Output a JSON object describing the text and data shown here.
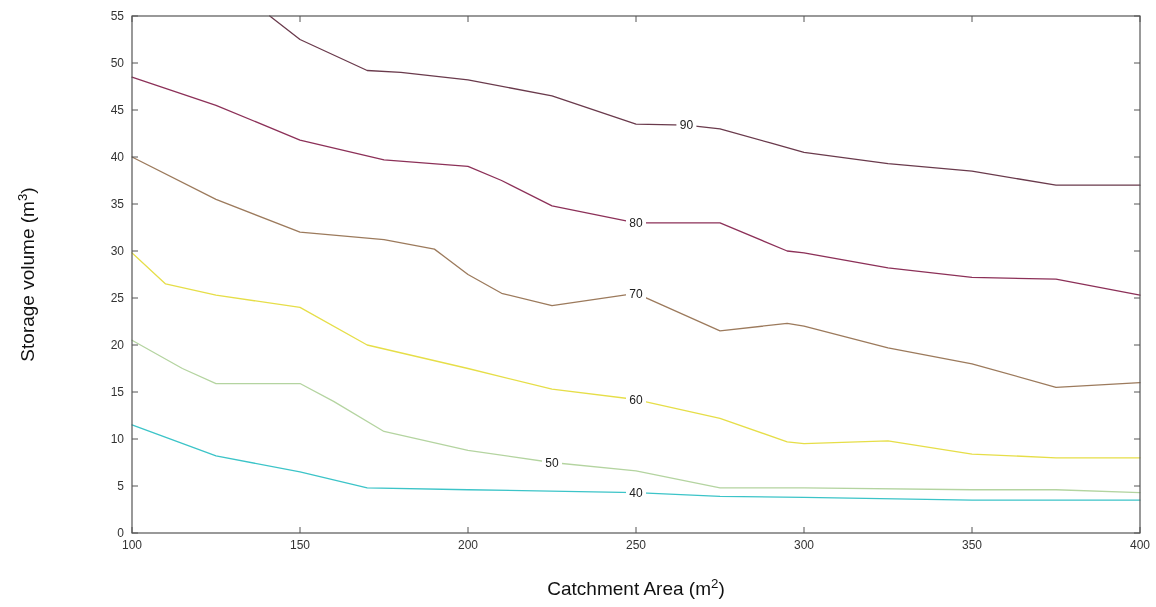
{
  "chart_data": {
    "type": "line",
    "xlabel": "Catchment Area (m$^{2}$)",
    "ylabel": "Storage volume (m$^{3}$)",
    "xlim": [
      100,
      400
    ],
    "ylim": [
      0,
      55
    ],
    "xticks": [
      100,
      150,
      200,
      250,
      300,
      350,
      400
    ],
    "yticks": [
      0,
      5,
      10,
      15,
      20,
      25,
      30,
      35,
      40,
      45,
      50,
      55
    ],
    "grid": false,
    "marker": "none",
    "line_style": "solid",
    "series": [
      {
        "name": "40",
        "color": "#3cc4c8",
        "x": [
          100,
          125,
          150,
          170,
          200,
          250,
          275,
          300,
          350,
          400
        ],
        "values": [
          11.5,
          8.2,
          6.5,
          4.8,
          4.6,
          4.3,
          3.9,
          3.8,
          3.5,
          3.5
        ]
      },
      {
        "name": "50",
        "color": "#b4d4a0",
        "x": [
          100,
          115,
          125,
          150,
          160,
          175,
          200,
          225,
          250,
          275,
          300,
          350,
          375,
          400
        ],
        "values": [
          20.5,
          17.5,
          15.9,
          15.9,
          14,
          10.8,
          8.8,
          7.5,
          6.6,
          4.8,
          4.8,
          4.6,
          4.6,
          4.3
        ]
      },
      {
        "name": "60",
        "color": "#e6de48",
        "x": [
          100,
          110,
          125,
          150,
          170,
          200,
          225,
          250,
          275,
          295,
          300,
          325,
          350,
          375,
          400
        ],
        "values": [
          29.8,
          26.5,
          25.3,
          24,
          20,
          17.5,
          15.3,
          14.2,
          12.2,
          9.7,
          9.5,
          9.8,
          8.4,
          8,
          8
        ]
      },
      {
        "name": "70",
        "color": "#9c7a5c",
        "x": [
          100,
          125,
          150,
          175,
          190,
          200,
          210,
          225,
          250,
          275,
          295,
          300,
          325,
          350,
          375,
          400
        ],
        "values": [
          40,
          35.5,
          32,
          31.2,
          30.2,
          27.5,
          25.5,
          24.2,
          25.5,
          21.5,
          22.3,
          22,
          19.7,
          18,
          15.5,
          16
        ]
      },
      {
        "name": "80",
        "color": "#8c3058",
        "x": [
          100,
          125,
          150,
          175,
          200,
          210,
          225,
          250,
          275,
          295,
          300,
          325,
          350,
          375,
          400
        ],
        "values": [
          48.5,
          45.5,
          41.8,
          39.7,
          39,
          37.5,
          34.8,
          33,
          33,
          30,
          29.8,
          28.2,
          27.2,
          27,
          25.3
        ]
      },
      {
        "name": "90",
        "color": "#6a3a4c",
        "x": [
          141,
          150,
          170,
          180,
          200,
          225,
          250,
          265,
          275,
          290,
          300,
          325,
          350,
          375,
          400
        ],
        "values": [
          55,
          52.5,
          49.2,
          49,
          48.2,
          46.5,
          43.5,
          43.4,
          43,
          41.5,
          40.5,
          39.3,
          38.5,
          37,
          37
        ]
      }
    ]
  }
}
